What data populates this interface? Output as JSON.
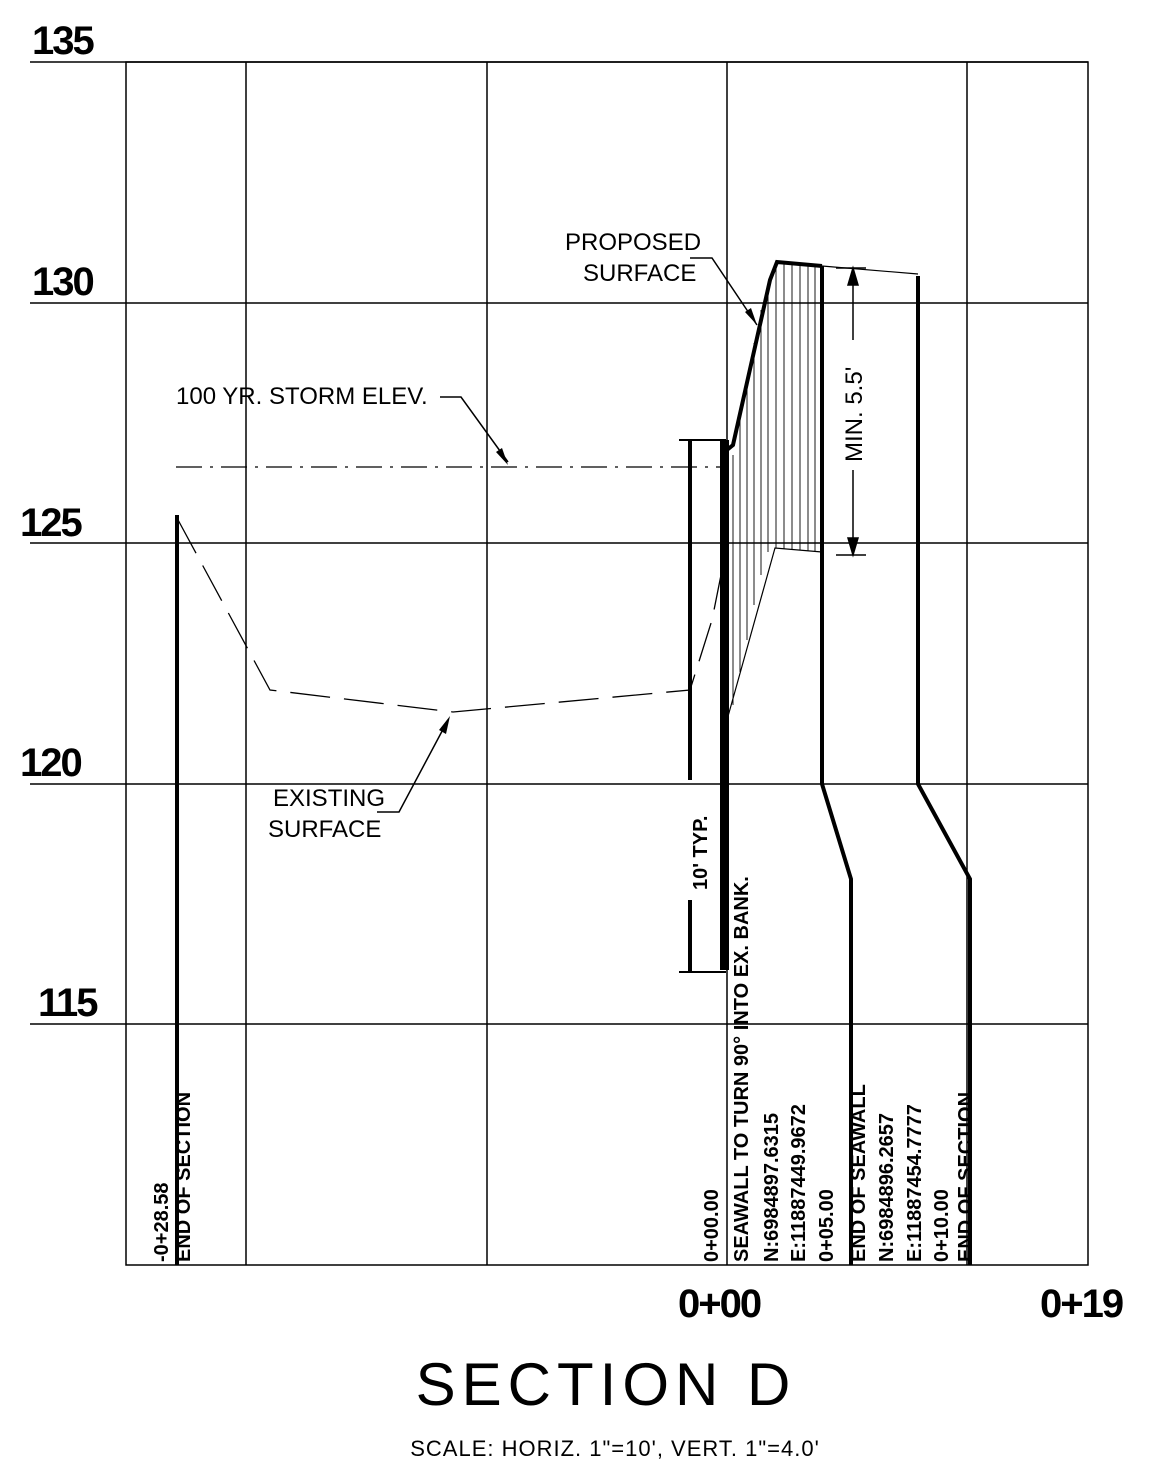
{
  "elevation_labels": [
    "135",
    "130",
    "125",
    "120",
    "115"
  ],
  "station_labels": [
    "0+00",
    "0+19"
  ],
  "callouts": {
    "proposed_surface": [
      "PROPOSED",
      "SURFACE"
    ],
    "existing_surface": [
      "EXISTING",
      "SURFACE"
    ],
    "storm_elev": "100 YR. STORM ELEV.",
    "min_depth": "MIN. 5.5'",
    "typ_depth": "10' TYP."
  },
  "vertical_labels": {
    "left_end": [
      "-0+28.58",
      "END OF SECTION"
    ],
    "seawall_start": [
      "0+00.00",
      "SEAWALL TO TURN 90° INTO EX. BANK.",
      "N:6984897.6315",
      "E:11887449.9672"
    ],
    "seawall_end": [
      "0+05.00",
      "END OF SEAWALL",
      "N:6984896.2657",
      "E:11887454.7777"
    ],
    "right_end": [
      "0+10.00",
      "END OF SECTION"
    ]
  },
  "title": "SECTION D",
  "scale_note": "SCALE: HORIZ. 1\"=10',   VERT. 1\"=4.0'",
  "colors": {
    "line": "#000000",
    "background": "#ffffff"
  }
}
